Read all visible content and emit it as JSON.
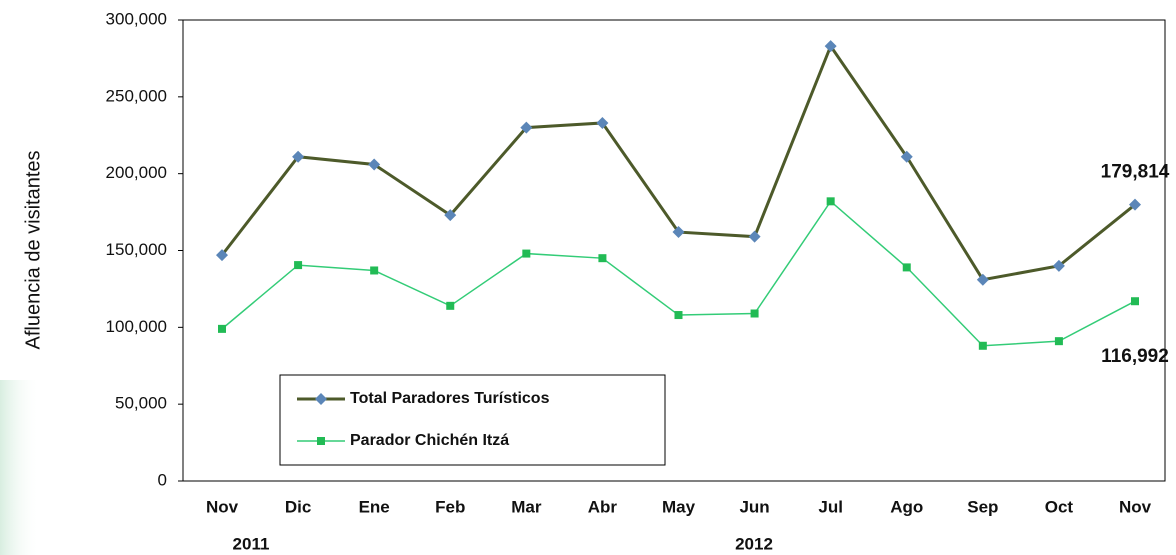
{
  "chart_data": {
    "type": "line",
    "y_label": "Afluencia de visitantes",
    "categories": [
      "Nov",
      "Dic",
      "Ene",
      "Feb",
      "Mar",
      "Abr",
      "May",
      "Jun",
      "Jul",
      "Ago",
      "Sep",
      "Oct",
      "Nov"
    ],
    "year_labels": [
      "2011",
      "2012"
    ],
    "series": [
      {
        "name": "Total Paradores Turísticos",
        "color": "#4d5a2a",
        "marker_color": "#5b86b8",
        "marker": "diamond",
        "values": [
          147000,
          211000,
          206000,
          173000,
          230000,
          233000,
          162000,
          159000,
          283000,
          211000,
          131000,
          140000,
          179814
        ],
        "value_labels": [
          null,
          null,
          null,
          null,
          null,
          null,
          null,
          null,
          null,
          null,
          null,
          null,
          "179,814"
        ]
      },
      {
        "name": "Parador Chichén Itzá",
        "color": "#33cc77",
        "marker_color": "#22bb55",
        "marker": "square",
        "values": [
          99000,
          140500,
          137000,
          114000,
          148000,
          145000,
          108000,
          109000,
          182000,
          139000,
          88000,
          91000,
          116992
        ],
        "value_labels": [
          null,
          null,
          null,
          null,
          null,
          null,
          null,
          null,
          null,
          null,
          null,
          null,
          "116,992"
        ]
      }
    ],
    "ylim": [
      0,
      300000
    ],
    "yticks": [
      0,
      {
        "value": 50000,
        "label": "50,000"
      },
      {
        "value": 100000,
        "label": "100,000"
      },
      {
        "value": 150000,
        "label": "150,000"
      },
      {
        "value": 200000,
        "label": "200,000"
      },
      {
        "value": 250000,
        "label": "250,000"
      },
      {
        "value": 300000,
        "label": "300,000"
      }
    ],
    "legend": "lower left"
  }
}
